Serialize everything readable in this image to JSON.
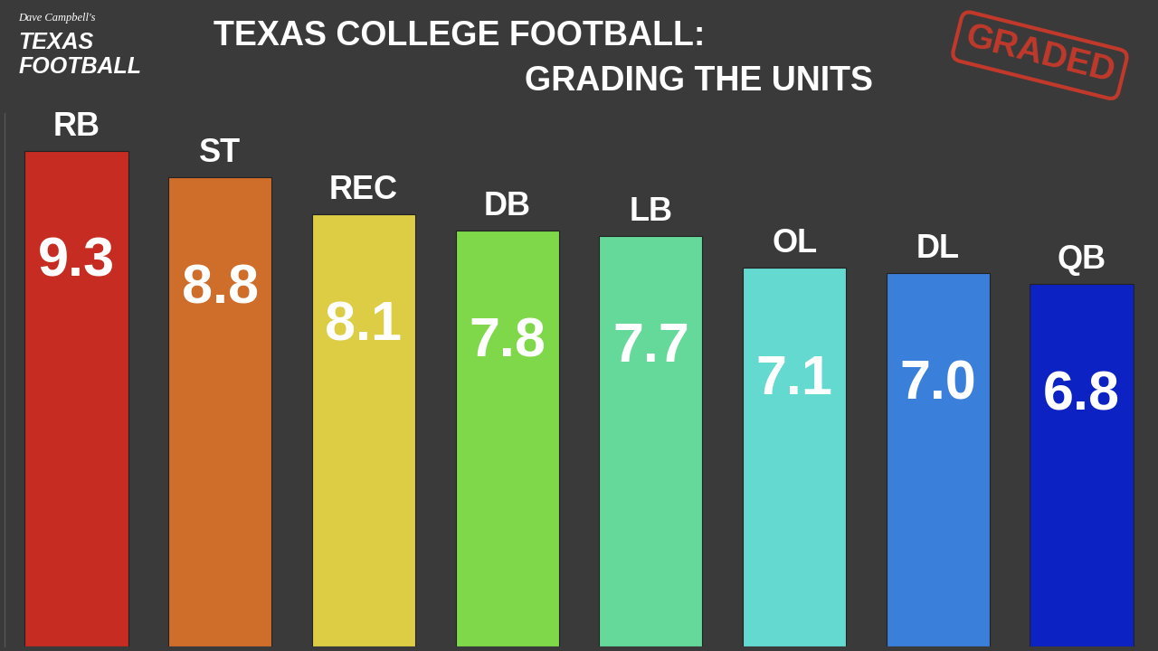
{
  "chart_data": {
    "type": "bar",
    "title": "TEXAS COLLEGE FOOTBALL:",
    "subtitle": "GRADING THE UNITS",
    "logo": [
      "Dave Campbell's",
      "TEXAS",
      "FOOTBALL"
    ],
    "stamp": "GRADED",
    "categories": [
      "RB",
      "ST",
      "REC",
      "DB",
      "LB",
      "OL",
      "DL",
      "QB"
    ],
    "values": [
      9.3,
      8.8,
      8.1,
      7.8,
      7.7,
      7.1,
      7.0,
      6.8
    ],
    "colors": [
      "#c62c22",
      "#cf6d2a",
      "#dccd45",
      "#7fd84a",
      "#64d99a",
      "#64d9d0",
      "#3a7fd9",
      "#0c22c3"
    ],
    "ylim": [
      0,
      10
    ],
    "data_labels": true,
    "tick_labels": false,
    "grid": false
  }
}
